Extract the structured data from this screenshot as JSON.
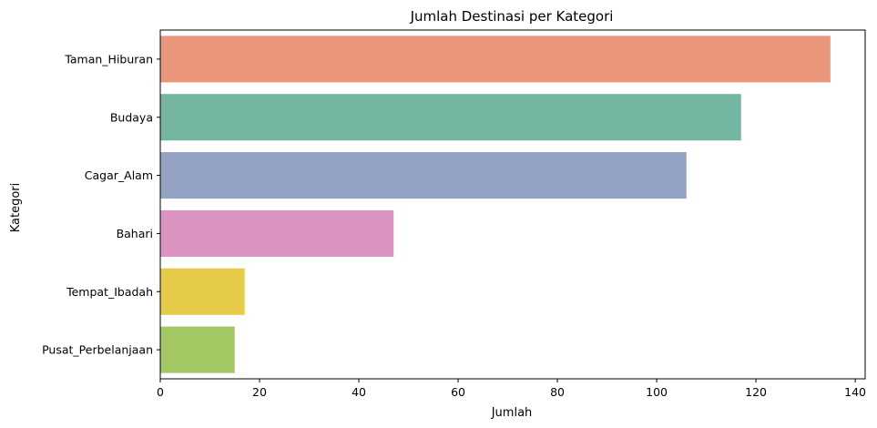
{
  "chart_data": {
    "type": "bar",
    "orientation": "horizontal",
    "title": "Jumlah Destinasi per Kategori",
    "xlabel": "Jumlah",
    "ylabel": "Kategori",
    "categories": [
      "Taman_Hiburan",
      "Budaya",
      "Cagar_Alam",
      "Bahari",
      "Tempat_Ibadah",
      "Pusat_Perbelanjaan"
    ],
    "values": [
      135,
      117,
      106,
      47,
      17,
      15
    ],
    "colors": [
      "#e9967a",
      "#73b5a0",
      "#94a3c4",
      "#db94c0",
      "#e6cb48",
      "#a3c864"
    ],
    "xlim": [
      0,
      142
    ],
    "xticks": [
      0,
      20,
      40,
      60,
      80,
      100,
      120,
      140
    ],
    "grid": false,
    "legend": "none"
  }
}
